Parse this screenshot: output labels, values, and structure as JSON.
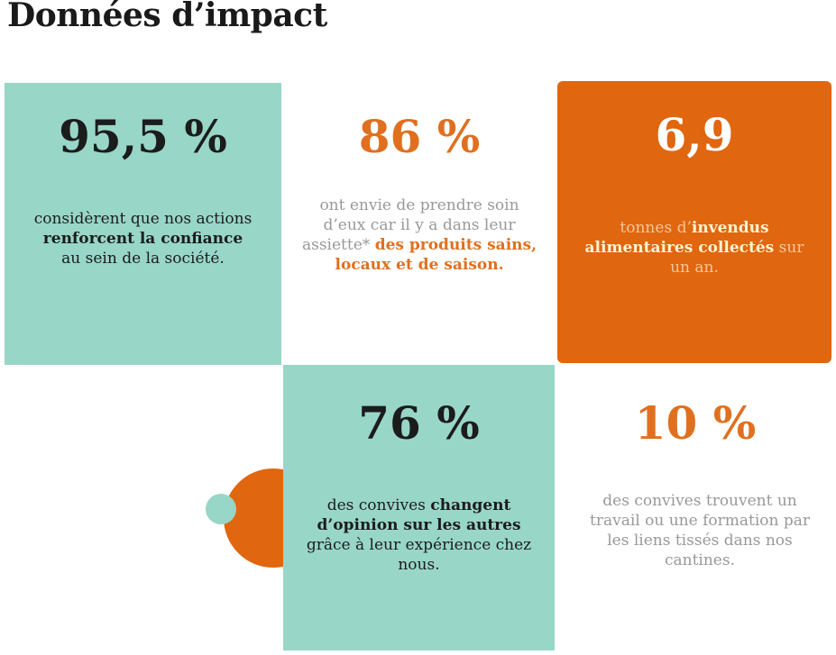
{
  "title": "Données d’impact",
  "colors": {
    "teal": "#98d6c8",
    "orange": "#e0660f",
    "dark": "#1c1c1c"
  },
  "stats": [
    {
      "value": "95,5 %",
      "pre": "considèrent que nos actions ",
      "bold": "renforcent la confiance",
      "post": " au sein de la société."
    },
    {
      "value": "86 %",
      "pre": "ont envie de prendre soin d’eux car il y a dans leur assiette* ",
      "bold": "des produits sains, locaux et de saison.",
      "post": ""
    },
    {
      "value": "6,9",
      "pre": "tonnes d’",
      "bold": "invendus alimentaires collectés",
      "post": " sur un an."
    },
    {
      "value": "76 %",
      "pre": "des convives ",
      "bold": "changent d’opinion sur les autres",
      "post": " grâce à leur expérience chez nous."
    },
    {
      "value": "10 %",
      "pre": "des convives trouvent un travail ou une formation par les liens tissés dans nos cantines.",
      "bold": "",
      "post": ""
    }
  ]
}
